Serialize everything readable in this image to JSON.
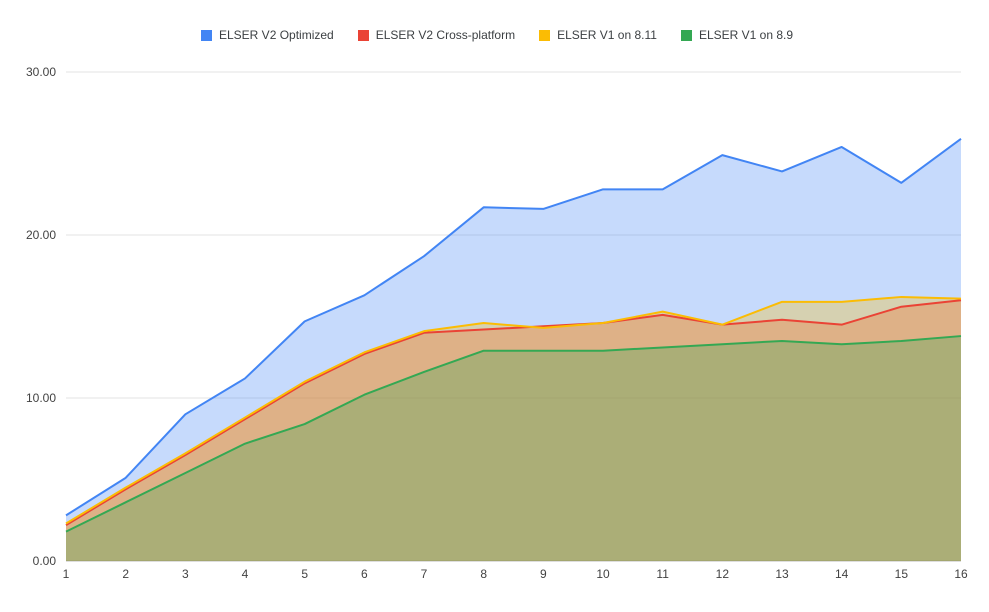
{
  "chart_data": {
    "type": "area",
    "title": "",
    "xlabel": "",
    "ylabel": "",
    "x": [
      1,
      2,
      3,
      4,
      5,
      6,
      7,
      8,
      9,
      10,
      11,
      12,
      13,
      14,
      15,
      16
    ],
    "ylim": [
      0,
      30
    ],
    "yticks": [
      "0.00",
      "10.00",
      "20.00",
      "30.00"
    ],
    "grid": true,
    "legend_position": "top",
    "fill_opacity": 0.3,
    "series": [
      {
        "name": "ELSER V2 Optimized",
        "color": "#4285F4",
        "values": [
          2.8,
          5.1,
          9.0,
          11.2,
          14.7,
          16.3,
          18.7,
          21.7,
          21.6,
          22.8,
          22.8,
          24.9,
          23.9,
          25.4,
          23.2,
          25.9
        ]
      },
      {
        "name": "ELSER V2 Cross-platform",
        "color": "#EA4335",
        "values": [
          2.2,
          4.4,
          6.5,
          8.7,
          10.9,
          12.7,
          14.0,
          14.2,
          14.4,
          14.6,
          15.1,
          14.5,
          14.8,
          14.5,
          15.6,
          16.0
        ]
      },
      {
        "name": "ELSER V1 on 8.11",
        "color": "#FBBC04",
        "values": [
          2.3,
          4.5,
          6.6,
          8.8,
          11.0,
          12.8,
          14.1,
          14.6,
          14.3,
          14.6,
          15.3,
          14.5,
          15.9,
          15.9,
          16.2,
          16.1
        ]
      },
      {
        "name": "ELSER V1 on 8.9",
        "color": "#34A853",
        "values": [
          1.8,
          3.6,
          5.4,
          7.2,
          8.4,
          10.2,
          11.6,
          12.9,
          12.9,
          12.9,
          13.1,
          13.3,
          13.5,
          13.3,
          13.5,
          13.8
        ]
      }
    ]
  }
}
